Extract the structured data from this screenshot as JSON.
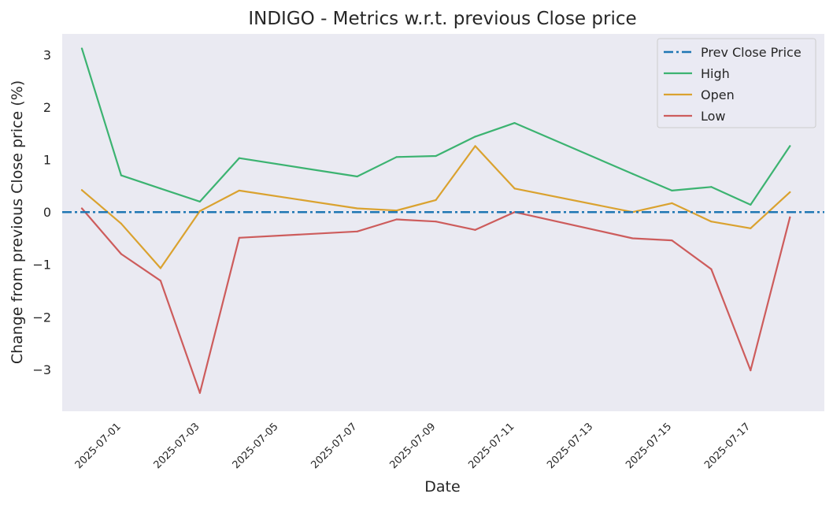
{
  "chart_data": {
    "type": "line",
    "title": "INDIGO - Metrics w.r.t. previous Close price",
    "xlabel": "Date",
    "ylabel": "Change from previous Close price (%)",
    "x": [
      "2025-06-30",
      "2025-07-01",
      "2025-07-02",
      "2025-07-03",
      "2025-07-04",
      "2025-07-07",
      "2025-07-08",
      "2025-07-09",
      "2025-07-10",
      "2025-07-11",
      "2025-07-14",
      "2025-07-15",
      "2025-07-16",
      "2025-07-17",
      "2025-07-18"
    ],
    "x_ticks": [
      "2025-07-01",
      "2025-07-03",
      "2025-07-05",
      "2025-07-07",
      "2025-07-09",
      "2025-07-11",
      "2025-07-13",
      "2025-07-15",
      "2025-07-17"
    ],
    "xlim": [
      "2025-06-29T12:00",
      "2025-07-18T21:00"
    ],
    "y_ticks": [
      3,
      2,
      1,
      0,
      -1,
      -2,
      -3
    ],
    "ylim": [
      -3.8,
      3.4
    ],
    "grid": false,
    "legend_position": "top-right",
    "reference_line": {
      "name": "Prev Close Price",
      "value": 0,
      "color": "#1f77b4",
      "style": "dash-dot"
    },
    "series": [
      {
        "name": "High",
        "color": "#3cb371",
        "values": [
          3.12,
          0.7,
          0.45,
          0.2,
          1.03,
          0.68,
          1.05,
          1.07,
          1.44,
          1.7,
          0.73,
          0.41,
          0.48,
          0.14,
          1.26
        ]
      },
      {
        "name": "Open",
        "color": "#daa22f",
        "values": [
          0.42,
          -0.22,
          -1.07,
          0.02,
          0.41,
          0.07,
          0.03,
          0.23,
          1.26,
          0.45,
          0.0,
          0.17,
          -0.18,
          -0.31,
          0.38
        ]
      },
      {
        "name": "Low",
        "color": "#cd5c5c",
        "values": [
          0.07,
          -0.8,
          -1.31,
          -3.45,
          -0.49,
          -0.37,
          -0.14,
          -0.18,
          -0.34,
          0.0,
          -0.5,
          -0.54,
          -1.09,
          -3.02,
          -0.1
        ]
      }
    ]
  }
}
